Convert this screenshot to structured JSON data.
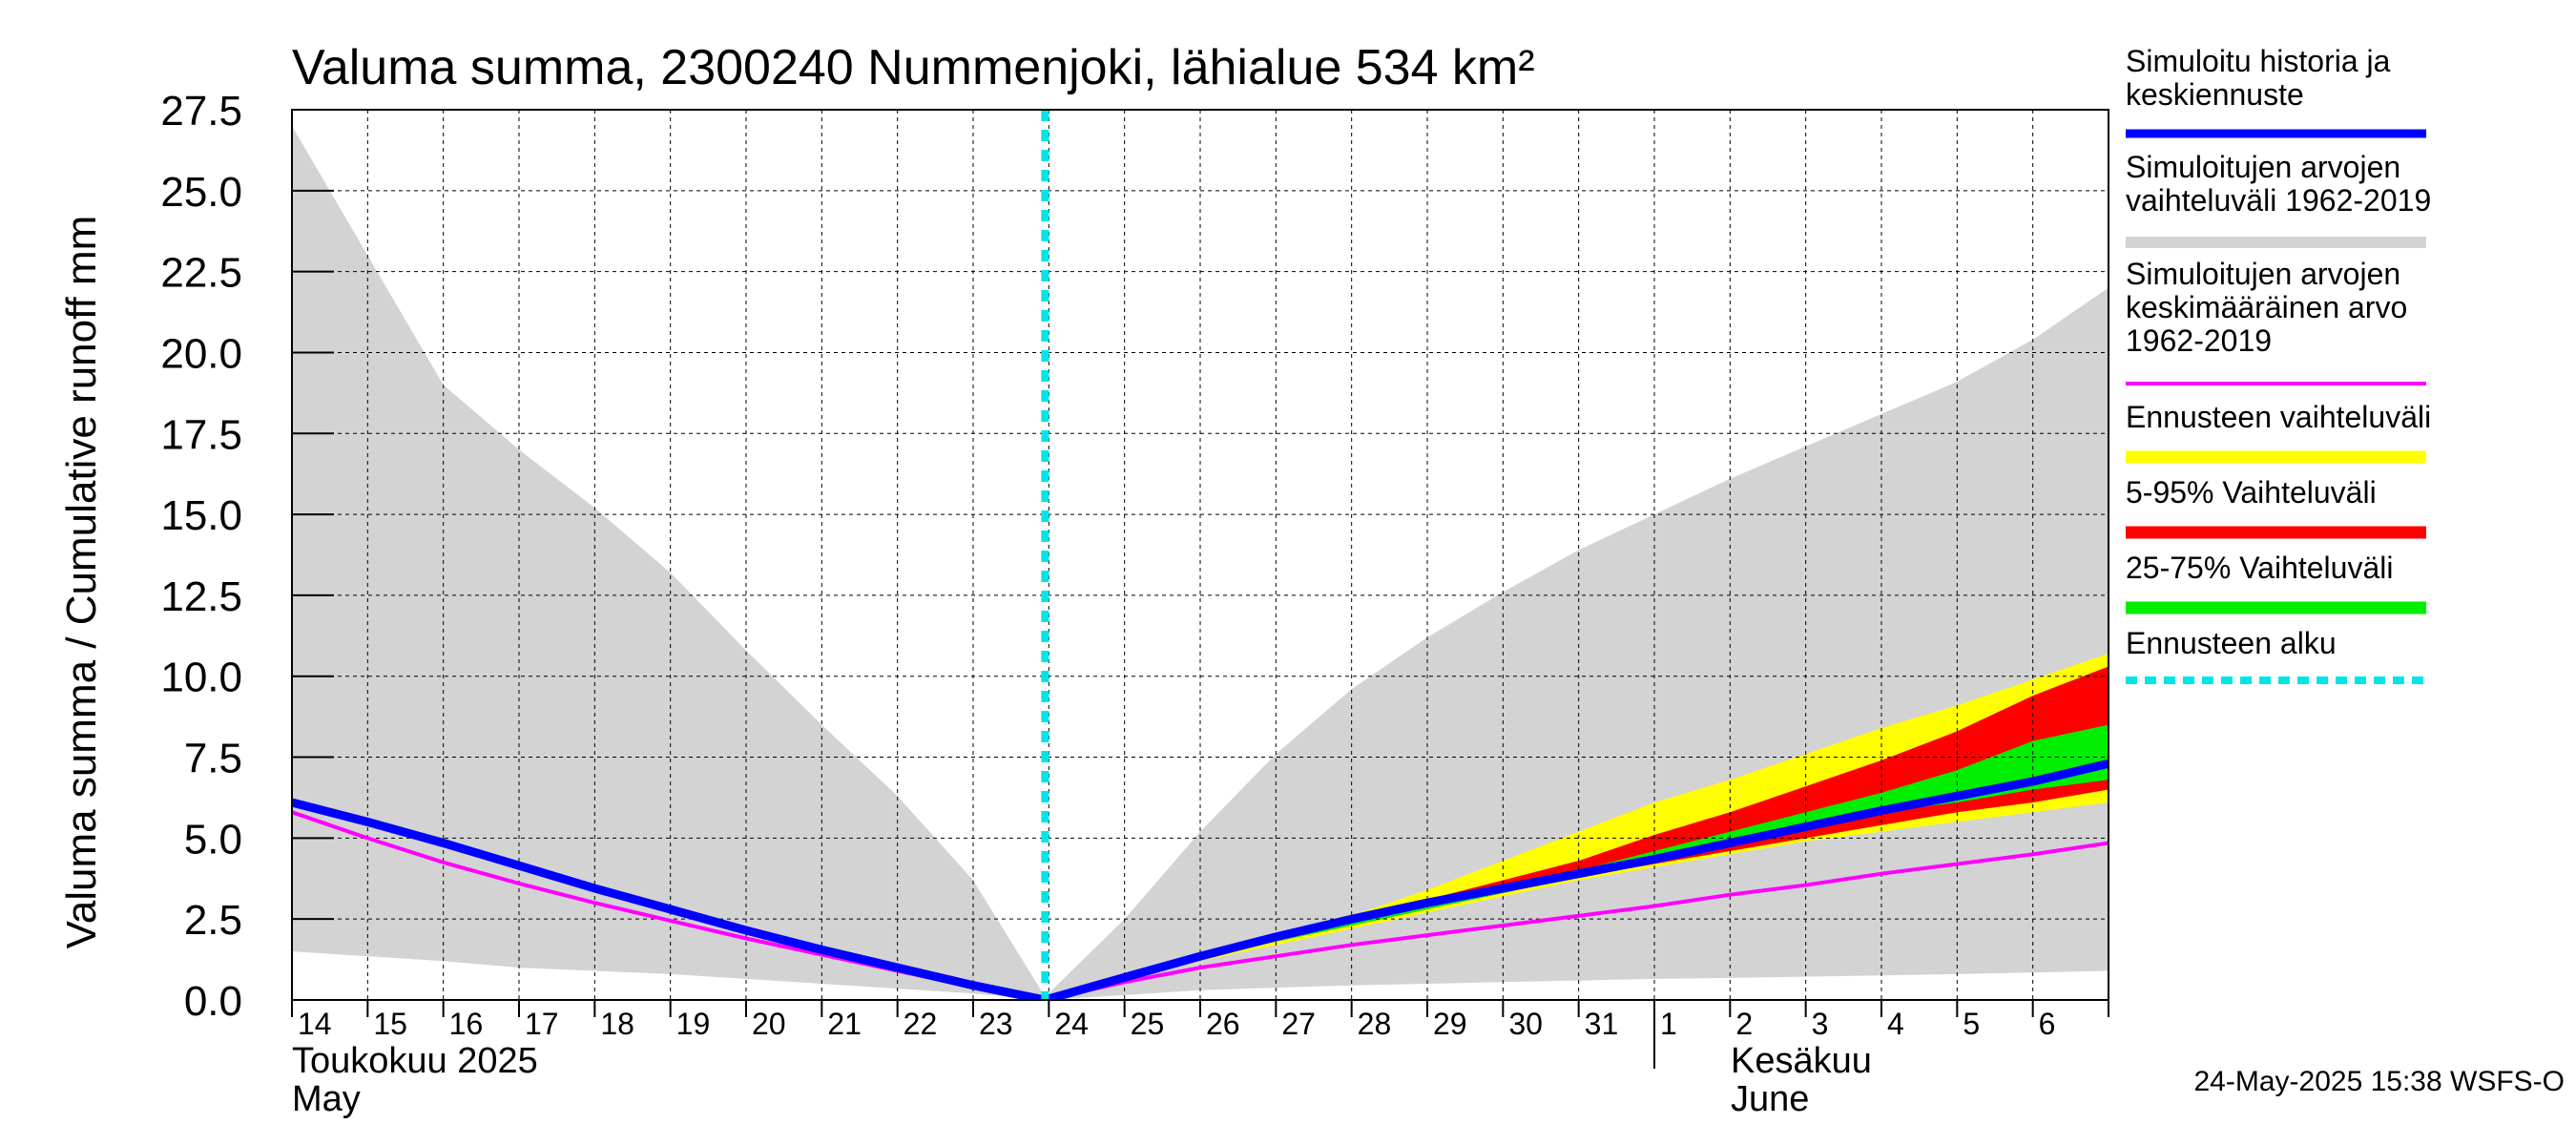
{
  "chart_data": {
    "type": "area",
    "title": "Valuma summa, 2300240 Nummenjoki, lähialue 534 km²",
    "ylabel": "Valuma summa / Cumulative runoff    mm",
    "ylim": [
      0,
      27.5
    ],
    "yticks": [
      0.0,
      2.5,
      5.0,
      7.5,
      10.0,
      12.5,
      15.0,
      17.5,
      20.0,
      22.5,
      25.0,
      27.5
    ],
    "ytick_labels": [
      "0.0",
      "2.5",
      "5.0",
      "7.5",
      "10.0",
      "12.5",
      "15.0",
      "17.5",
      "20.0",
      "22.5",
      "25.0",
      "27.5"
    ],
    "x_start_day": 14,
    "x_end_day": 38,
    "day_labels": [
      {
        "day": 14,
        "label": "14"
      },
      {
        "day": 15,
        "label": "15"
      },
      {
        "day": 16,
        "label": "16"
      },
      {
        "day": 17,
        "label": "17"
      },
      {
        "day": 18,
        "label": "18"
      },
      {
        "day": 19,
        "label": "19"
      },
      {
        "day": 20,
        "label": "20"
      },
      {
        "day": 21,
        "label": "21"
      },
      {
        "day": 22,
        "label": "22"
      },
      {
        "day": 23,
        "label": "23"
      },
      {
        "day": 24,
        "label": "24"
      },
      {
        "day": 25,
        "label": "25"
      },
      {
        "day": 26,
        "label": "26"
      },
      {
        "day": 27,
        "label": "27"
      },
      {
        "day": 28,
        "label": "28"
      },
      {
        "day": 29,
        "label": "29"
      },
      {
        "day": 30,
        "label": "30"
      },
      {
        "day": 31,
        "label": "31"
      },
      {
        "day": 32,
        "label": "1"
      },
      {
        "day": 33,
        "label": "2"
      },
      {
        "day": 34,
        "label": "3"
      },
      {
        "day": 35,
        "label": "4"
      },
      {
        "day": 36,
        "label": "5"
      },
      {
        "day": 37,
        "label": "6"
      }
    ],
    "month_labels": [
      {
        "day": 14,
        "line1": "Toukokuu  2025",
        "line2": "May"
      },
      {
        "day": 32,
        "line1": "Kesäkuu",
        "line2": "June"
      }
    ],
    "month_divider_day": 32,
    "forecast_start_day": 23.95,
    "series": [
      {
        "name": "Simuloitujen arvojen vaihteluväli 1962-2019",
        "kind": "band",
        "color": "#d3d3d3",
        "x": [
          14,
          16,
          17,
          18,
          19,
          20,
          21,
          22,
          23,
          23.95,
          25,
          26,
          27,
          28,
          29,
          30,
          31,
          32,
          33,
          34,
          35,
          36,
          37,
          38
        ],
        "upper": [
          27.0,
          19.0,
          17.0,
          15.2,
          13.2,
          10.8,
          8.5,
          6.3,
          3.7,
          0.1,
          2.5,
          5.2,
          7.6,
          9.6,
          11.2,
          12.6,
          13.9,
          15.0,
          16.1,
          17.1,
          18.1,
          19.1,
          20.4,
          22.0
        ],
        "lower": [
          1.5,
          1.2,
          1.0,
          0.9,
          0.8,
          0.65,
          0.5,
          0.35,
          0.2,
          0.0,
          0.15,
          0.3,
          0.38,
          0.45,
          0.5,
          0.55,
          0.6,
          0.65,
          0.68,
          0.72,
          0.76,
          0.8,
          0.85,
          0.9
        ]
      },
      {
        "name": "Ennusteen vaihteluväli",
        "kind": "band",
        "color": "#ffff00",
        "x": [
          23.95,
          26,
          27,
          28,
          29,
          30,
          31,
          32,
          33,
          34,
          35,
          36,
          37,
          38
        ],
        "upper": [
          0.0,
          1.3,
          1.9,
          2.6,
          3.4,
          4.3,
          5.2,
          6.1,
          6.8,
          7.6,
          8.4,
          9.1,
          9.9,
          10.7
        ],
        "lower": [
          0.0,
          1.2,
          1.7,
          2.2,
          2.7,
          3.2,
          3.7,
          4.1,
          4.5,
          4.9,
          5.2,
          5.5,
          5.8,
          6.1
        ]
      },
      {
        "name": "5-95% Vaihteluväli",
        "kind": "band",
        "color": "#ff0000",
        "x": [
          23.95,
          26,
          27,
          28,
          29,
          30,
          31,
          32,
          33,
          34,
          35,
          36,
          37,
          38
        ],
        "upper": [
          0.0,
          1.3,
          1.9,
          2.5,
          3.1,
          3.7,
          4.3,
          5.1,
          5.8,
          6.6,
          7.4,
          8.3,
          9.4,
          10.3
        ],
        "lower": [
          0.0,
          1.25,
          1.8,
          2.3,
          2.8,
          3.3,
          3.8,
          4.2,
          4.6,
          5.0,
          5.4,
          5.8,
          6.1,
          6.5
        ]
      },
      {
        "name": "25-75% Vaihteluväli",
        "kind": "band",
        "color": "#00ee00",
        "x": [
          23.95,
          26,
          27,
          28,
          29,
          30,
          31,
          32,
          33,
          34,
          35,
          36,
          37,
          38
        ],
        "upper": [
          0.0,
          1.3,
          1.85,
          2.4,
          2.9,
          3.4,
          4.0,
          4.6,
          5.2,
          5.8,
          6.4,
          7.1,
          8.0,
          8.5
        ],
        "lower": [
          0.0,
          1.25,
          1.8,
          2.3,
          2.8,
          3.3,
          3.8,
          4.3,
          4.8,
          5.3,
          5.8,
          6.1,
          6.5,
          6.8
        ]
      },
      {
        "name": "Simuloitujen arvojen keskimääräinen arvo 1962-2019",
        "kind": "line",
        "color": "#ff00ff",
        "width": 4,
        "x": [
          14,
          15,
          16,
          17,
          18,
          19,
          20,
          21,
          22,
          23,
          23.95,
          25,
          26,
          27,
          28,
          29,
          30,
          31,
          32,
          33,
          34,
          35,
          36,
          37,
          38
        ],
        "y": [
          5.8,
          5.0,
          4.25,
          3.6,
          3.0,
          2.45,
          1.9,
          1.4,
          0.9,
          0.4,
          0.0,
          0.55,
          1.0,
          1.35,
          1.7,
          2.0,
          2.3,
          2.6,
          2.9,
          3.25,
          3.55,
          3.9,
          4.2,
          4.5,
          4.85
        ]
      },
      {
        "name": "Simuloitu historia ja keskiennuste",
        "kind": "line",
        "color": "#0000ff",
        "width": 9,
        "x": [
          14,
          15,
          16,
          17,
          18,
          19,
          20,
          21,
          22,
          23,
          23.95,
          25,
          26,
          27,
          28,
          29,
          30,
          31,
          32,
          33,
          34,
          35,
          36,
          37,
          38
        ],
        "y": [
          6.1,
          5.5,
          4.85,
          4.15,
          3.45,
          2.8,
          2.15,
          1.55,
          1.0,
          0.45,
          0.0,
          0.7,
          1.35,
          1.95,
          2.5,
          3.0,
          3.45,
          3.9,
          4.35,
          4.85,
          5.35,
          5.85,
          6.3,
          6.75,
          7.3
        ]
      }
    ],
    "legend": [
      {
        "label": "Simuloitu historia ja keskiennuste",
        "lines": [
          "Simuloitu historia ja",
          "keskiennuste"
        ],
        "color": "#0000ff",
        "style": "solid"
      },
      {
        "label": "Simuloitujen arvojen vaihteluväli 1962-2019",
        "lines": [
          "Simuloitujen arvojen",
          "vaihteluväli 1962-2019"
        ],
        "color": "#d3d3d3",
        "style": "solid"
      },
      {
        "label": "Simuloitujen arvojen keskimääräinen arvo 1962-2019",
        "lines": [
          "Simuloitujen arvojen",
          "keskimääräinen arvo",
          "   1962-2019"
        ],
        "color": "#ff00ff",
        "style": "thin"
      },
      {
        "label": "Ennusteen vaihteluväli",
        "lines": [
          "Ennusteen vaihteluväli"
        ],
        "color": "#ffff00",
        "style": "solid"
      },
      {
        "label": "5-95% Vaihteluväli",
        "lines": [
          "5-95% Vaihteluväli"
        ],
        "color": "#ff0000",
        "style": "solid"
      },
      {
        "label": "25-75% Vaihteluväli",
        "lines": [
          "25-75% Vaihteluväli"
        ],
        "color": "#00ee00",
        "style": "solid"
      },
      {
        "label": "Ennusteen alku",
        "lines": [
          "Ennusteen alku"
        ],
        "color": "#00e5e5",
        "style": "dashed"
      }
    ],
    "footer": "24-May-2025 15:38 WSFS-O"
  }
}
